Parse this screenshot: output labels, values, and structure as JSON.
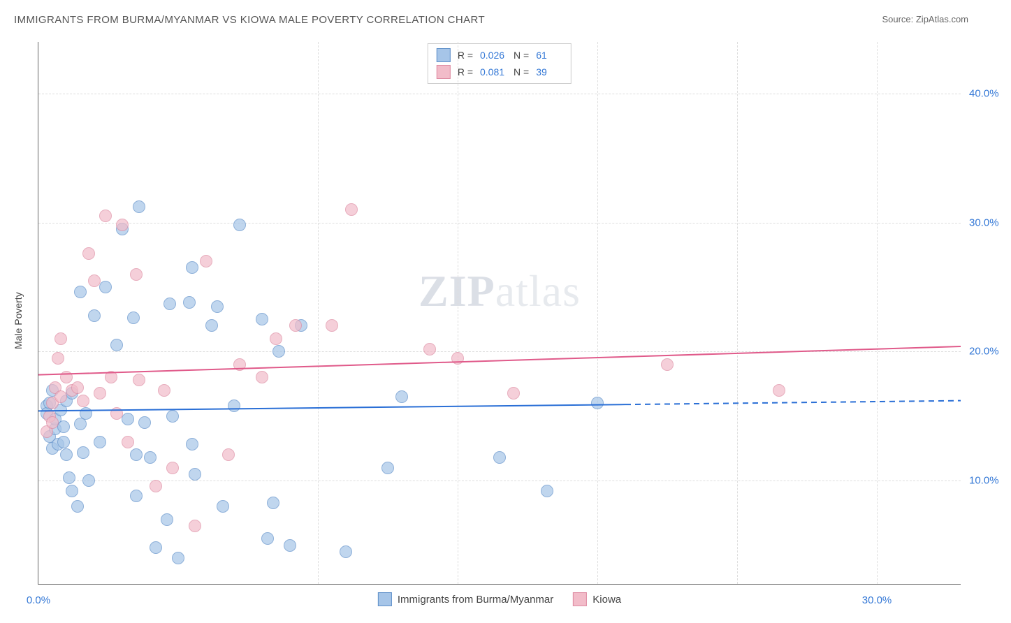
{
  "header": {
    "title": "IMMIGRANTS FROM BURMA/MYANMAR VS KIOWA MALE POVERTY CORRELATION CHART",
    "source": "Source: ZipAtlas.com"
  },
  "chart": {
    "type": "scatter",
    "xlabel": "",
    "ylabel": "Male Poverty",
    "xlim": [
      0,
      33
    ],
    "ylim": [
      2,
      44
    ],
    "xtick_labels": [
      "0.0%",
      "30.0%"
    ],
    "xtick_positions": [
      0,
      30
    ],
    "ytick_labels": [
      "10.0%",
      "20.0%",
      "30.0%",
      "40.0%"
    ],
    "ytick_positions": [
      10,
      20,
      30,
      40
    ],
    "grid_color": "#dddddd",
    "axis_color": "#666666",
    "background_color": "#ffffff",
    "vgrid_positions": [
      10,
      15,
      20,
      25,
      30
    ],
    "watermark": "ZIPatlas",
    "series": [
      {
        "name": "Immigrants from Burma/Myanmar",
        "marker_color": "#a6c5e8",
        "marker_border": "#5e8fc9",
        "marker_size": 16,
        "R": "0.026",
        "N": "61",
        "trend": {
          "x1": 0,
          "y1": 15.4,
          "x2_solid": 21,
          "y2_solid": 15.9,
          "x2_dash": 33,
          "y2_dash": 16.2,
          "color": "#2a6fd6",
          "width": 2
        },
        "points": [
          [
            0.3,
            15.8
          ],
          [
            0.3,
            15.2
          ],
          [
            0.4,
            13.4
          ],
          [
            0.4,
            16.0
          ],
          [
            0.5,
            17.0
          ],
          [
            0.5,
            12.5
          ],
          [
            0.6,
            14.0
          ],
          [
            0.6,
            14.8
          ],
          [
            0.7,
            12.8
          ],
          [
            0.8,
            15.5
          ],
          [
            0.9,
            13.0
          ],
          [
            0.9,
            14.2
          ],
          [
            1.0,
            16.2
          ],
          [
            1.0,
            12.0
          ],
          [
            1.1,
            10.2
          ],
          [
            1.2,
            16.8
          ],
          [
            1.2,
            9.2
          ],
          [
            1.4,
            8.0
          ],
          [
            1.5,
            14.4
          ],
          [
            1.5,
            24.6
          ],
          [
            1.6,
            12.2
          ],
          [
            1.7,
            15.2
          ],
          [
            1.8,
            10.0
          ],
          [
            2.0,
            22.8
          ],
          [
            2.2,
            13.0
          ],
          [
            2.4,
            25.0
          ],
          [
            2.8,
            20.5
          ],
          [
            3.0,
            29.5
          ],
          [
            3.2,
            14.8
          ],
          [
            3.4,
            22.6
          ],
          [
            3.5,
            12.0
          ],
          [
            3.5,
            8.8
          ],
          [
            3.6,
            31.2
          ],
          [
            3.8,
            14.5
          ],
          [
            4.0,
            11.8
          ],
          [
            4.2,
            4.8
          ],
          [
            4.6,
            7.0
          ],
          [
            4.7,
            23.7
          ],
          [
            4.8,
            15.0
          ],
          [
            5.0,
            4.0
          ],
          [
            5.4,
            23.8
          ],
          [
            5.5,
            12.8
          ],
          [
            5.5,
            26.5
          ],
          [
            5.6,
            10.5
          ],
          [
            6.2,
            22.0
          ],
          [
            6.4,
            23.5
          ],
          [
            6.6,
            8.0
          ],
          [
            7.0,
            15.8
          ],
          [
            7.2,
            29.8
          ],
          [
            8.0,
            22.5
          ],
          [
            8.2,
            5.5
          ],
          [
            8.4,
            8.3
          ],
          [
            8.6,
            20.0
          ],
          [
            9.0,
            5.0
          ],
          [
            9.4,
            22.0
          ],
          [
            11.0,
            4.5
          ],
          [
            12.5,
            11.0
          ],
          [
            13.0,
            16.5
          ],
          [
            16.5,
            11.8
          ],
          [
            18.2,
            9.2
          ],
          [
            20.0,
            16.0
          ]
        ]
      },
      {
        "name": "Kiowa",
        "marker_color": "#f2bcc9",
        "marker_border": "#de8ba2",
        "marker_size": 16,
        "R": "0.081",
        "N": "39",
        "trend": {
          "x1": 0,
          "y1": 18.2,
          "x2_solid": 33,
          "y2_solid": 20.4,
          "x2_dash": 33,
          "y2_dash": 20.4,
          "color": "#e05a8a",
          "width": 2
        },
        "points": [
          [
            0.3,
            13.8
          ],
          [
            0.4,
            15.0
          ],
          [
            0.5,
            16.0
          ],
          [
            0.5,
            14.5
          ],
          [
            0.6,
            17.2
          ],
          [
            0.7,
            19.5
          ],
          [
            0.8,
            16.5
          ],
          [
            0.8,
            21.0
          ],
          [
            1.0,
            18.0
          ],
          [
            1.2,
            17.0
          ],
          [
            1.4,
            17.2
          ],
          [
            1.6,
            16.2
          ],
          [
            1.8,
            27.6
          ],
          [
            2.0,
            25.5
          ],
          [
            2.2,
            16.8
          ],
          [
            2.4,
            30.5
          ],
          [
            2.6,
            18.0
          ],
          [
            2.8,
            15.2
          ],
          [
            3.0,
            29.8
          ],
          [
            3.2,
            13.0
          ],
          [
            3.5,
            26.0
          ],
          [
            3.6,
            17.8
          ],
          [
            4.2,
            9.6
          ],
          [
            4.5,
            17.0
          ],
          [
            4.8,
            11.0
          ],
          [
            5.6,
            6.5
          ],
          [
            6.0,
            27.0
          ],
          [
            6.8,
            12.0
          ],
          [
            7.2,
            19.0
          ],
          [
            8.0,
            18.0
          ],
          [
            8.5,
            21.0
          ],
          [
            9.2,
            22.0
          ],
          [
            10.5,
            22.0
          ],
          [
            11.2,
            31.0
          ],
          [
            14.0,
            20.2
          ],
          [
            15.0,
            19.5
          ],
          [
            17.0,
            16.8
          ],
          [
            22.5,
            19.0
          ],
          [
            26.5,
            17.0
          ]
        ]
      }
    ],
    "bottom_legend": [
      {
        "swatch_fill": "#a6c5e8",
        "swatch_border": "#5e8fc9",
        "label": "Immigrants from Burma/Myanmar"
      },
      {
        "swatch_fill": "#f2bcc9",
        "swatch_border": "#de8ba2",
        "label": "Kiowa"
      }
    ]
  }
}
